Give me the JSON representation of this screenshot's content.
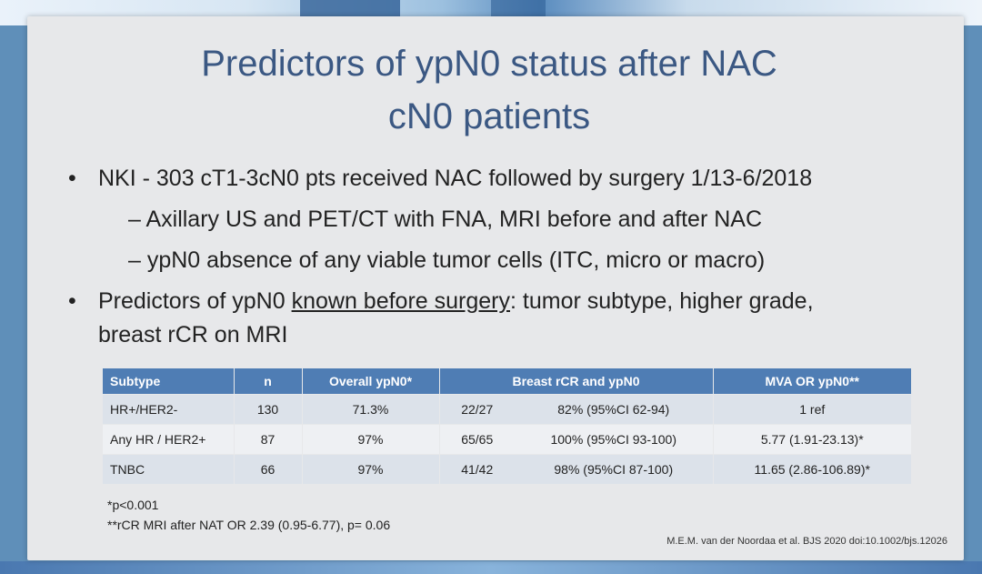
{
  "slide": {
    "title_line1": "Predictors of ypN0 status after NAC",
    "title_line2": "cN0 patients",
    "bullets": [
      {
        "text": "NKI - 303 cT1-3cN0 pts received NAC  followed by surgery 1/13-6/2018",
        "subs": [
          "– Axillary US and PET/CT with FNA, MRI before and after NAC",
          "– ypN0 absence of any viable tumor cells (ITC, micro or macro)"
        ]
      },
      {
        "prefix": "Predictors of ypN0 ",
        "underlined": "known before surgery",
        "suffix": ": tumor subtype, higher grade,",
        "line2": "breast rCR on MRI"
      }
    ],
    "bullet_symbol": "•"
  },
  "table": {
    "headers": [
      "Subtype",
      "n",
      "Overall ypN0*",
      "Breast rCR and ypN0",
      "MVA OR ypN0**"
    ],
    "rows": [
      [
        "HR+/HER2-",
        "130",
        "71.3%",
        "22/27",
        "82% (95%CI 62-94)",
        "1 ref"
      ],
      [
        "Any HR / HER2+",
        "87",
        "97%",
        "65/65",
        "100% (95%CI 93-100)",
        "5.77 (1.91-23.13)*"
      ],
      [
        "TNBC",
        "66",
        "97%",
        "41/42",
        "98% (95%CI 87-100)",
        "11.65 (2.86-106.89)*"
      ]
    ]
  },
  "footnotes": {
    "f1": "*p<0.001",
    "f2": "**rCR MRI after NAT OR 2.39 (0.95-6.77), p= 0.06"
  },
  "citation": "M.E.M. van der Noordaa et al.  BJS 2020 doi:10.1002/bjs.12026",
  "colors": {
    "title": "#3b5883",
    "table_header": "#4f7db4",
    "row_dark": "#dce2ea",
    "row_light": "#eef0f3",
    "slide_bg": "#e7e8ea"
  }
}
